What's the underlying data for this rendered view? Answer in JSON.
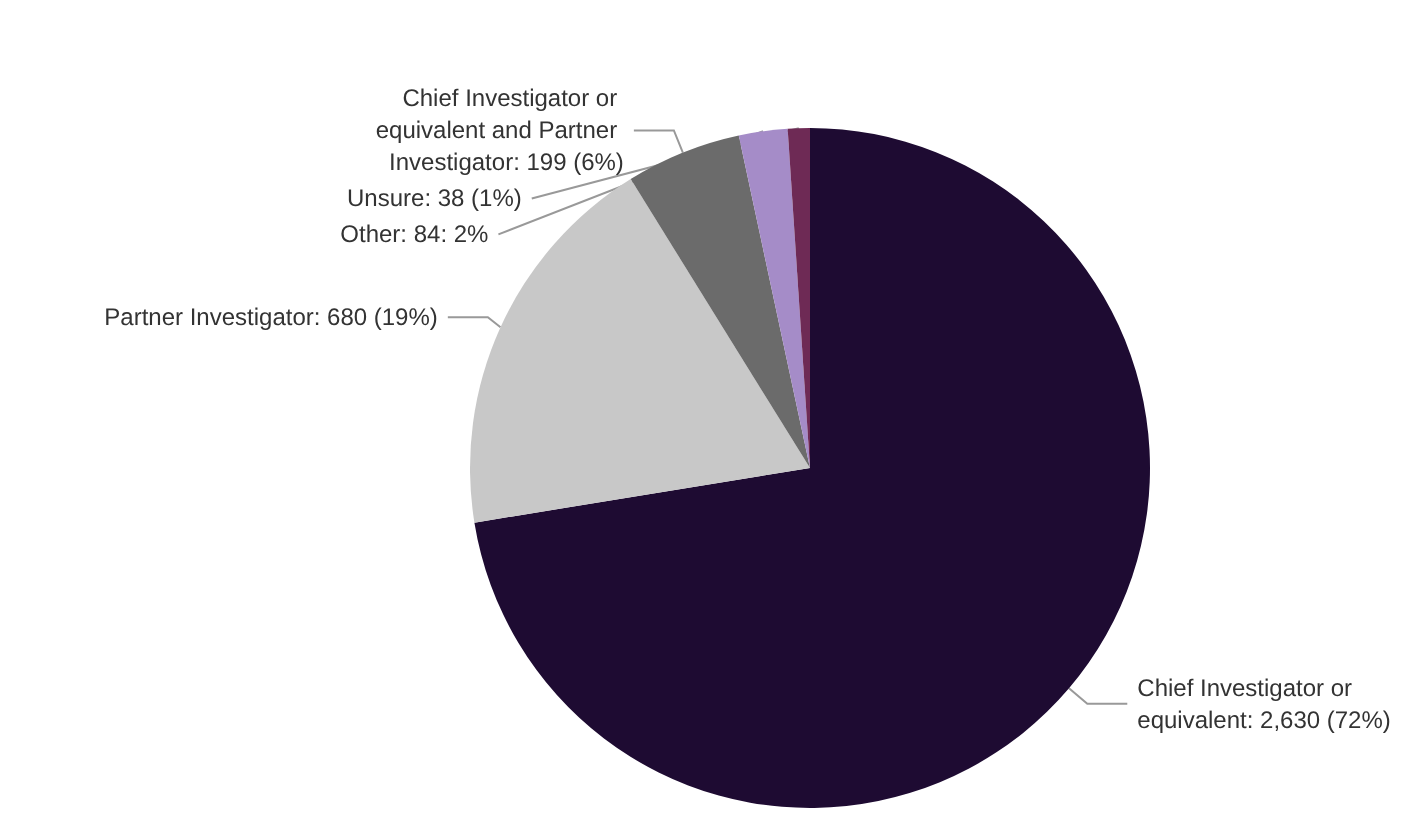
{
  "chart_data": {
    "type": "pie",
    "categories": [
      "Chief Investigator or equivalent",
      "Partner Investigator",
      "Chief Investigator or equivalent and Partner Investigator",
      "Other",
      "Unsure"
    ],
    "values": [
      2630,
      680,
      199,
      84,
      38
    ],
    "value_labels": [
      "2,630 (72%)",
      "680 (19%)",
      "199 (6%)",
      "84: 2%",
      "38 (1%)"
    ],
    "colors": [
      "#1e0b32",
      "#c8c8c8",
      "#6b6b6b",
      "#a58cc8",
      "#6e2a55"
    ]
  }
}
